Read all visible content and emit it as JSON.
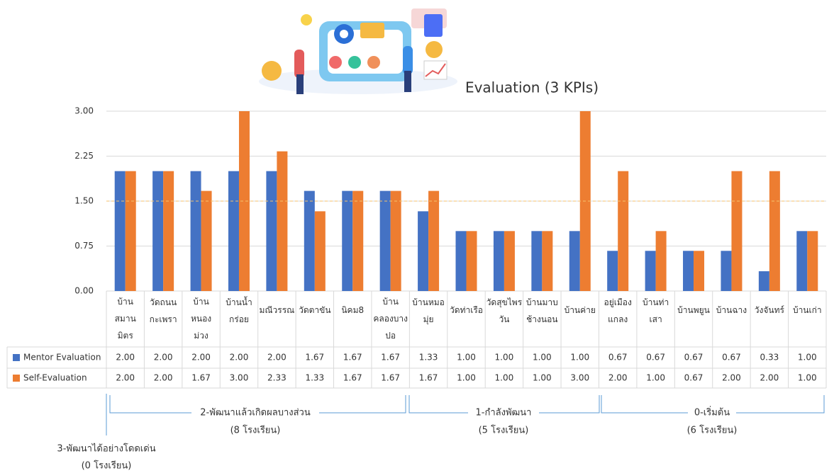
{
  "chart_data": {
    "type": "bar",
    "title": "Evaluation (3 KPIs)",
    "categories": [
      "บ้าน\nสมาน\nมิตร",
      "วัดถนน\nกะเพรา",
      "บ้าน\nหนอง\nม่วง",
      "บ้านน้ำ\nกร่อย",
      "มณีวรรณ",
      "วัดตาขัน",
      "นิคม8",
      "บ้าน\nคลองบาง\nปอ",
      "บ้านหมอ\nมุ่ย",
      "วัดท่าเรือ",
      "วัดสุขไพร\nวัน",
      "บ้านมาบ\nช้างนอน",
      "บ้านค่าย",
      "อยู่เมือง\nแกลง",
      "บ้านท่า\nเสา",
      "บ้านพยูน",
      "บ้านฉาง",
      "วังจันทร์",
      "บ้านเก่า"
    ],
    "series": [
      {
        "name": "Mentor Evaluation",
        "color": "#4472c4",
        "values": [
          2,
          2,
          2,
          2,
          2,
          1.67,
          1.67,
          1.67,
          1.33,
          1,
          1,
          1,
          1,
          0.67,
          0.67,
          0.67,
          0.67,
          0.33,
          1
        ],
        "value_labels": [
          "2.00",
          "2.00",
          "2.00",
          "2.00",
          "2.00",
          "1.67",
          "1.67",
          "1.67",
          "1.33",
          "1.00",
          "1.00",
          "1.00",
          "1.00",
          "0.67",
          "0.67",
          "0.67",
          "0.67",
          "0.33",
          "1.00"
        ]
      },
      {
        "name": "Self-Evaluation",
        "color": "#ed7d31",
        "values": [
          2,
          2,
          1.67,
          3,
          2.33,
          1.33,
          1.67,
          1.67,
          1.67,
          1,
          1,
          1,
          3,
          2,
          1,
          0.67,
          2,
          2,
          1
        ],
        "value_labels": [
          "2.00",
          "2.00",
          "1.67",
          "3.00",
          "2.33",
          "1.33",
          "1.67",
          "1.67",
          "1.67",
          "1.00",
          "1.00",
          "1.00",
          "3.00",
          "2.00",
          "1.00",
          "0.67",
          "2.00",
          "2.00",
          "1.00"
        ]
      }
    ],
    "ylim": [
      0,
      3
    ],
    "yticks": [
      {
        "value": 0,
        "label": "0.00"
      },
      {
        "value": 0.75,
        "label": "0.75"
      },
      {
        "value": 1.5,
        "label": "1.50"
      },
      {
        "value": 2.25,
        "label": "2.25"
      },
      {
        "value": 3,
        "label": "3.00"
      }
    ],
    "grid": true,
    "reference_line": 1.5,
    "groups": [
      {
        "label": "3-พัฒนาได้อย่างโดดเด่น",
        "count": "(0 โรงเรียน)"
      },
      {
        "label": "2-พัฒนาแล้วเกิดผลบางส่วน",
        "count": "(8 โรงเรียน)"
      },
      {
        "label": "1-กำลังพัฒนา",
        "count": "(5 โรงเรียน)"
      },
      {
        "label": "0-เริ่มต้น",
        "count": "(6 โรงเรียน)"
      }
    ]
  }
}
